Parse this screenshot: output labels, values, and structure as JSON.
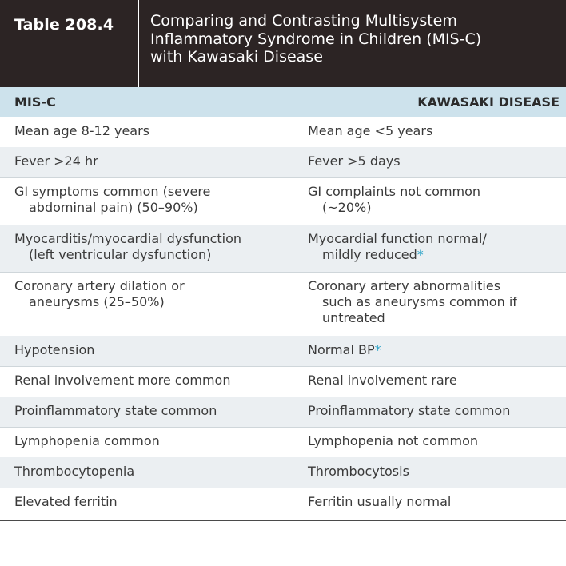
{
  "table": {
    "number": "Table 208.4",
    "title_lines": [
      "Comparing and Contrasting Multisystem",
      "Inflammatory Syndrome in Children (MIS-C)",
      "with Kawasaki Disease"
    ],
    "columns": [
      "MIS-C",
      "KAWASAKI DISEASE"
    ],
    "rows": [
      {
        "left": [
          "Mean age 8-12 years"
        ],
        "right": [
          "Mean age <5 years"
        ]
      },
      {
        "left": [
          "Fever >24 hr"
        ],
        "right": [
          "Fever >5 days"
        ]
      },
      {
        "left": [
          "GI symptoms common (severe",
          "abdominal pain) (50–90%)"
        ],
        "right": [
          "GI complaints not common",
          "(~20%)"
        ]
      },
      {
        "left": [
          "Myocarditis/myocardial dysfunction",
          "(left ventricular dysfunction)"
        ],
        "right": [
          "Myocardial function normal/",
          "mildly reduced"
        ],
        "right_asterisk": "*"
      },
      {
        "left": [
          "Coronary artery dilation or",
          "aneurysms (25–50%)"
        ],
        "right": [
          "Coronary artery abnormalities",
          "such as aneurysms common if",
          "untreated"
        ]
      },
      {
        "left": [
          "Hypotension"
        ],
        "right": [
          "Normal BP"
        ],
        "right_asterisk": "*"
      },
      {
        "left": [
          "Renal involvement more common"
        ],
        "right": [
          "Renal involvement rare"
        ]
      },
      {
        "left": [
          "Proinflammatory state common"
        ],
        "right": [
          "Proinflammatory state common"
        ]
      },
      {
        "left": [
          "Lymphopenia common"
        ],
        "right": [
          "Lymphopenia not common"
        ]
      },
      {
        "left": [
          "Thrombocytopenia"
        ],
        "right": [
          "Thrombocytosis"
        ]
      },
      {
        "left": [
          "Elevated ferritin"
        ],
        "right": [
          "Ferritin usually normal"
        ]
      }
    ]
  },
  "colors": {
    "header_background": "#2c2424",
    "column_header_background": "#cde2ec",
    "shaded_row_background": "#ebeff2",
    "asterisk_accent": "#2ea3c7"
  }
}
